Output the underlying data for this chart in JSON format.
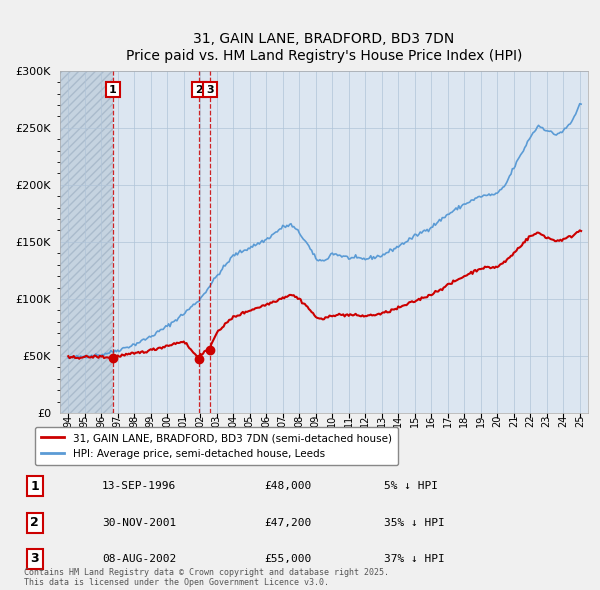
{
  "title": "31, GAIN LANE, BRADFORD, BD3 7DN",
  "subtitle": "Price paid vs. HM Land Registry's House Price Index (HPI)",
  "background_color": "#dce6f1",
  "plot_bg_color": "#dce6f1",
  "hpi_color": "#5b9bd5",
  "property_color": "#cc0000",
  "hatch_color": "#c8d4e3",
  "transactions": [
    {
      "label": "1",
      "date": 1996.71,
      "price": 48000
    },
    {
      "label": "2",
      "date": 2001.92,
      "price": 47200
    },
    {
      "label": "3",
      "date": 2002.59,
      "price": 55000
    }
  ],
  "transaction_table": [
    {
      "num": "1",
      "date": "13-SEP-1996",
      "price": "£48,000",
      "hpi": "5% ↓ HPI"
    },
    {
      "num": "2",
      "date": "30-NOV-2001",
      "price": "£47,200",
      "hpi": "35% ↓ HPI"
    },
    {
      "num": "3",
      "date": "08-AUG-2002",
      "price": "£55,000",
      "hpi": "37% ↓ HPI"
    }
  ],
  "legend_line1": "31, GAIN LANE, BRADFORD, BD3 7DN (semi-detached house)",
  "legend_line2": "HPI: Average price, semi-detached house, Leeds",
  "footer": "Contains HM Land Registry data © Crown copyright and database right 2025.\nThis data is licensed under the Open Government Licence v3.0.",
  "ylim": [
    0,
    300000
  ],
  "xlim": [
    1993.5,
    2025.5
  ],
  "yticks": [
    0,
    50000,
    100000,
    150000,
    200000,
    250000,
    300000
  ]
}
